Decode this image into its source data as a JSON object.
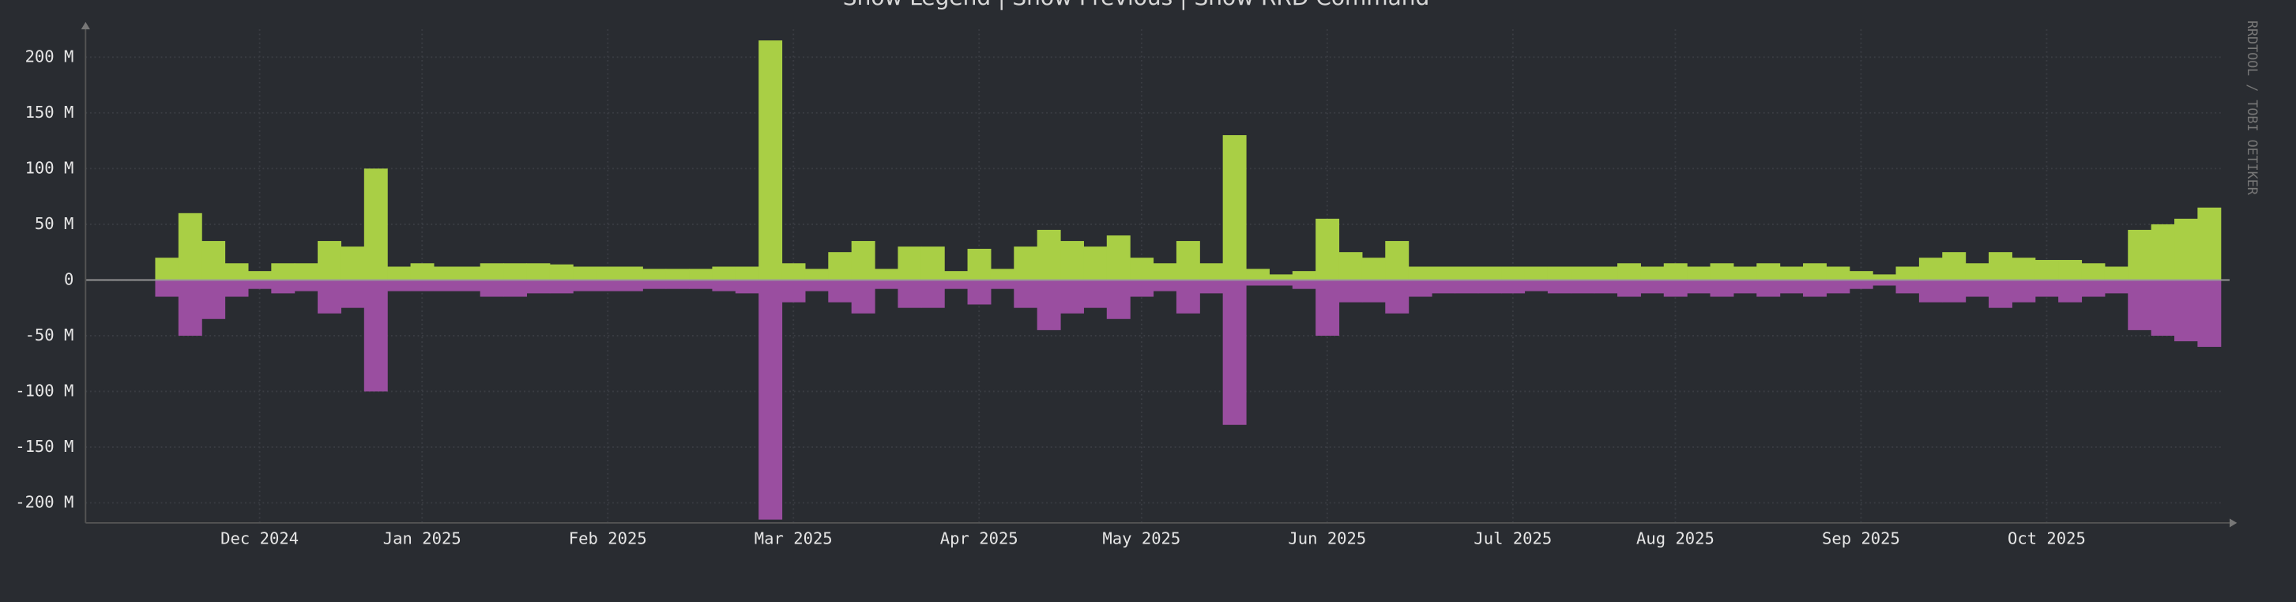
{
  "chart_data": {
    "type": "bar",
    "title": "Show Legend | Show Previous | Show RRD Command",
    "watermark": "RRDTOOL / TOBI OETIKER",
    "categories": [
      null,
      null,
      null,
      null,
      null,
      null,
      null,
      "Dec 2024",
      null,
      null,
      null,
      null,
      null,
      null,
      "Jan 2025",
      null,
      null,
      null,
      null,
      null,
      null,
      null,
      "Feb 2025",
      null,
      null,
      null,
      null,
      null,
      null,
      null,
      "Mar 2025",
      null,
      null,
      null,
      null,
      null,
      null,
      null,
      "Apr 2025",
      null,
      null,
      null,
      null,
      null,
      null,
      "May 2025",
      null,
      null,
      null,
      null,
      null,
      null,
      null,
      "Jun 2025",
      null,
      null,
      null,
      null,
      null,
      null,
      null,
      "Jul 2025",
      null,
      null,
      null,
      null,
      null,
      null,
      "Aug 2025",
      null,
      null,
      null,
      null,
      null,
      null,
      null,
      "Sep 2025",
      null,
      null,
      null,
      null,
      null,
      null,
      null,
      "Oct 2025",
      null,
      null,
      null,
      null,
      null,
      null,
      null
    ],
    "series": [
      {
        "color": "#a9cf45",
        "values": [
          0,
          0,
          0,
          20,
          60,
          35,
          15,
          8,
          15,
          15,
          35,
          30,
          100,
          12,
          15,
          12,
          12,
          15,
          15,
          15,
          14,
          12,
          12,
          12,
          10,
          10,
          10,
          12,
          12,
          215,
          15,
          10,
          25,
          35,
          10,
          30,
          30,
          8,
          28,
          10,
          30,
          45,
          35,
          30,
          40,
          20,
          15,
          35,
          15,
          130,
          10,
          5,
          8,
          55,
          25,
          20,
          35,
          12,
          12,
          12,
          12,
          12,
          12,
          12,
          12,
          12,
          15,
          12,
          15,
          12,
          15,
          12,
          15,
          12,
          15,
          12,
          8,
          5,
          12,
          20,
          25,
          15,
          25,
          20,
          18,
          18,
          15,
          12,
          45,
          50,
          55,
          65
        ]
      },
      {
        "color": "#9a4ea0",
        "values": [
          0,
          0,
          0,
          -15,
          -50,
          -35,
          -15,
          -8,
          -12,
          -10,
          -30,
          -25,
          -100,
          -10,
          -10,
          -10,
          -10,
          -15,
          -15,
          -12,
          -12,
          -10,
          -10,
          -10,
          -8,
          -8,
          -8,
          -10,
          -12,
          -215,
          -20,
          -10,
          -20,
          -30,
          -8,
          -25,
          -25,
          -8,
          -22,
          -8,
          -25,
          -45,
          -30,
          -25,
          -35,
          -15,
          -10,
          -30,
          -12,
          -130,
          -5,
          -5,
          -8,
          -50,
          -20,
          -20,
          -30,
          -15,
          -12,
          -12,
          -12,
          -12,
          -10,
          -12,
          -12,
          -12,
          -15,
          -12,
          -15,
          -12,
          -15,
          -12,
          -15,
          -12,
          -15,
          -12,
          -8,
          -5,
          -12,
          -20,
          -20,
          -15,
          -25,
          -20,
          -15,
          -20,
          -15,
          -12,
          -45,
          -50,
          -55,
          -60
        ]
      }
    ],
    "ylim": [
      -218,
      225
    ],
    "yticks": [
      {
        "value": 200,
        "label": "200 M"
      },
      {
        "value": 150,
        "label": "150 M"
      },
      {
        "value": 100,
        "label": "100 M"
      },
      {
        "value": 50,
        "label": "50 M"
      },
      0,
      {
        "value": -50,
        "label": "-50 M"
      },
      {
        "value": -100,
        "label": "-100 M"
      },
      {
        "value": -150,
        "label": "-150 M"
      },
      {
        "value": -200,
        "label": "-200 M"
      }
    ],
    "grid": true
  }
}
